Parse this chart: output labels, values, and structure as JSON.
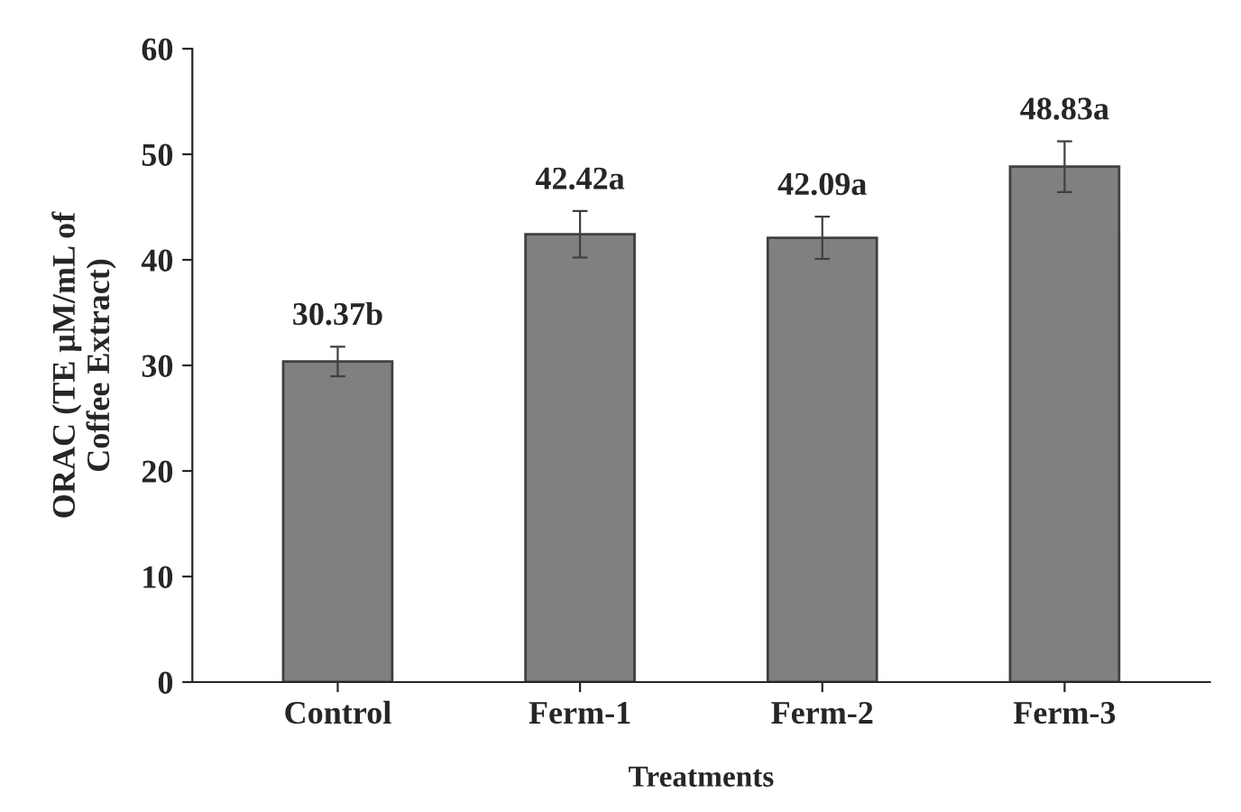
{
  "chart_data": {
    "type": "bar",
    "xlabel": "Treatments",
    "ylabel": "ORAC (TE μM/mL of\nCoffee Extract)",
    "categories": [
      "Control",
      "Ferm-1",
      "Ferm-2",
      "Ferm-3"
    ],
    "values": [
      30.37,
      42.42,
      42.09,
      48.83
    ],
    "errors": [
      1.4,
      2.2,
      2.0,
      2.4
    ],
    "value_labels": [
      "30.37b",
      "42.42a",
      "42.09a",
      "48.83a"
    ],
    "color": "#808080",
    "ylim": [
      0,
      60
    ],
    "yticks": [
      0,
      10,
      20,
      30,
      40,
      50,
      60
    ],
    "grid": false
  }
}
